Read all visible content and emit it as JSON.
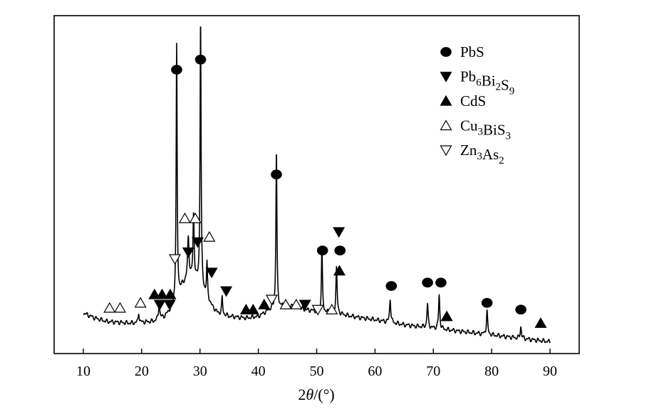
{
  "chart_data": {
    "type": "line",
    "title": "",
    "xlabel": {
      "prefix": "2",
      "symbol": "θ",
      "suffix": "/(°)"
    },
    "ylabel": "",
    "xlim": [
      5,
      95
    ],
    "ylim": [
      0,
      1
    ],
    "x_ticks": [
      10,
      20,
      30,
      40,
      50,
      60,
      70,
      80,
      90
    ],
    "x_tick_labels": [
      "10",
      "20",
      "30",
      "40",
      "50",
      "60",
      "70",
      "80",
      "90"
    ],
    "grid": false,
    "legend_position": "top-right",
    "series": [
      {
        "baseline": [
          [
            10,
            0.12
          ],
          [
            12,
            0.105
          ],
          [
            14,
            0.095
          ],
          [
            18,
            0.09
          ],
          [
            22,
            0.095
          ],
          [
            24,
            0.11
          ],
          [
            25,
            0.13
          ],
          [
            26,
            0.16
          ],
          [
            27,
            0.2
          ],
          [
            28,
            0.22
          ],
          [
            29,
            0.22
          ],
          [
            30,
            0.2
          ],
          [
            31,
            0.17
          ],
          [
            32,
            0.14
          ],
          [
            33,
            0.12
          ],
          [
            35,
            0.11
          ],
          [
            38,
            0.105
          ],
          [
            40,
            0.11
          ],
          [
            42,
            0.13
          ],
          [
            44,
            0.14
          ],
          [
            46,
            0.14
          ],
          [
            48,
            0.13
          ],
          [
            50,
            0.125
          ],
          [
            53,
            0.12
          ],
          [
            56,
            0.11
          ],
          [
            60,
            0.1
          ],
          [
            65,
            0.085
          ],
          [
            70,
            0.075
          ],
          [
            75,
            0.065
          ],
          [
            80,
            0.055
          ],
          [
            85,
            0.045
          ],
          [
            90,
            0.035
          ]
        ],
        "peaks": [
          {
            "x": 19.5,
            "h": 0.03,
            "w": 0.1
          },
          {
            "x": 23.0,
            "h": 0.045,
            "w": 0.12
          },
          {
            "x": 26.0,
            "h": 0.75,
            "w": 0.1
          },
          {
            "x": 28.0,
            "h": 0.12,
            "w": 0.15
          },
          {
            "x": 28.9,
            "h": 0.19,
            "w": 0.12
          },
          {
            "x": 30.1,
            "h": 0.8,
            "w": 0.1
          },
          {
            "x": 31.2,
            "h": 0.1,
            "w": 0.1
          },
          {
            "x": 33.8,
            "h": 0.05,
            "w": 0.1
          },
          {
            "x": 43.1,
            "h": 0.47,
            "w": 0.1
          },
          {
            "x": 50.9,
            "h": 0.195,
            "w": 0.1
          },
          {
            "x": 53.4,
            "h": 0.135,
            "w": 0.12
          },
          {
            "x": 62.6,
            "h": 0.07,
            "w": 0.12
          },
          {
            "x": 69.0,
            "h": 0.07,
            "w": 0.12
          },
          {
            "x": 71.0,
            "h": 0.1,
            "w": 0.12
          },
          {
            "x": 79.2,
            "h": 0.07,
            "w": 0.12
          },
          {
            "x": 85.0,
            "h": 0.035,
            "w": 0.12
          }
        ]
      }
    ],
    "markers": [
      {
        "phase": "PbS",
        "points": [
          [
            26.0,
            0.84
          ],
          [
            30.1,
            0.87
          ],
          [
            43.1,
            0.53
          ],
          [
            51.0,
            0.305
          ],
          [
            54.0,
            0.305
          ],
          [
            62.8,
            0.2
          ],
          [
            69.0,
            0.21
          ],
          [
            71.3,
            0.21
          ],
          [
            79.2,
            0.15
          ],
          [
            85.0,
            0.13
          ]
        ]
      },
      {
        "phase": "Pb6Bi2S9",
        "points": [
          [
            23.1,
            0.145
          ],
          [
            24.8,
            0.145
          ],
          [
            28.0,
            0.3
          ],
          [
            29.6,
            0.33
          ],
          [
            32.0,
            0.24
          ],
          [
            34.5,
            0.185
          ],
          [
            48.0,
            0.145
          ],
          [
            53.8,
            0.36
          ]
        ]
      },
      {
        "phase": "CdS",
        "points": [
          [
            22.2,
            0.175
          ],
          [
            23.5,
            0.175
          ],
          [
            24.9,
            0.175
          ],
          [
            37.9,
            0.13
          ],
          [
            39.1,
            0.13
          ],
          [
            41.0,
            0.145
          ],
          [
            53.9,
            0.245
          ],
          [
            72.3,
            0.11
          ],
          [
            88.4,
            0.09
          ]
        ]
      },
      {
        "phase": "Cu3BiS3",
        "points": [
          [
            14.5,
            0.135
          ],
          [
            16.3,
            0.135
          ],
          [
            19.8,
            0.15
          ],
          [
            27.4,
            0.4
          ],
          [
            29.2,
            0.4
          ],
          [
            31.6,
            0.345
          ],
          [
            44.7,
            0.145
          ],
          [
            46.5,
            0.145
          ],
          [
            52.6,
            0.13
          ]
        ]
      },
      {
        "phase": "Zn3As2",
        "points": [
          [
            25.7,
            0.28
          ],
          [
            42.3,
            0.16
          ],
          [
            50.2,
            0.13
          ]
        ]
      }
    ],
    "legend": [
      {
        "phase": "PbS",
        "label_parts": [
          {
            "t": "PbS",
            "sub": false
          }
        ]
      },
      {
        "phase": "Pb6Bi2S9",
        "label_parts": [
          {
            "t": "Pb",
            "sub": false
          },
          {
            "t": "6",
            "sub": true
          },
          {
            "t": "Bi",
            "sub": false
          },
          {
            "t": "2",
            "sub": true
          },
          {
            "t": "S",
            "sub": false
          },
          {
            "t": "9",
            "sub": true
          }
        ]
      },
      {
        "phase": "CdS",
        "label_parts": [
          {
            "t": "CdS",
            "sub": false
          }
        ]
      },
      {
        "phase": "Cu3BiS3",
        "label_parts": [
          {
            "t": "Cu",
            "sub": false
          },
          {
            "t": "3",
            "sub": true
          },
          {
            "t": "BiS",
            "sub": false
          },
          {
            "t": "3",
            "sub": true
          }
        ]
      },
      {
        "phase": "Zn3As2",
        "label_parts": [
          {
            "t": "Zn",
            "sub": false
          },
          {
            "t": "3",
            "sub": true
          },
          {
            "t": "As",
            "sub": false
          },
          {
            "t": "2",
            "sub": true
          }
        ]
      }
    ],
    "marker_styles": {
      "PbS": {
        "shape": "circle",
        "filled": true
      },
      "Pb6Bi2S9": {
        "shape": "triangle-down",
        "filled": true
      },
      "CdS": {
        "shape": "triangle-up",
        "filled": true
      },
      "Cu3BiS3": {
        "shape": "triangle-up",
        "filled": false
      },
      "Zn3As2": {
        "shape": "triangle-down",
        "filled": false
      }
    },
    "colors": {
      "line": "#000000",
      "frame": "#000000"
    }
  }
}
